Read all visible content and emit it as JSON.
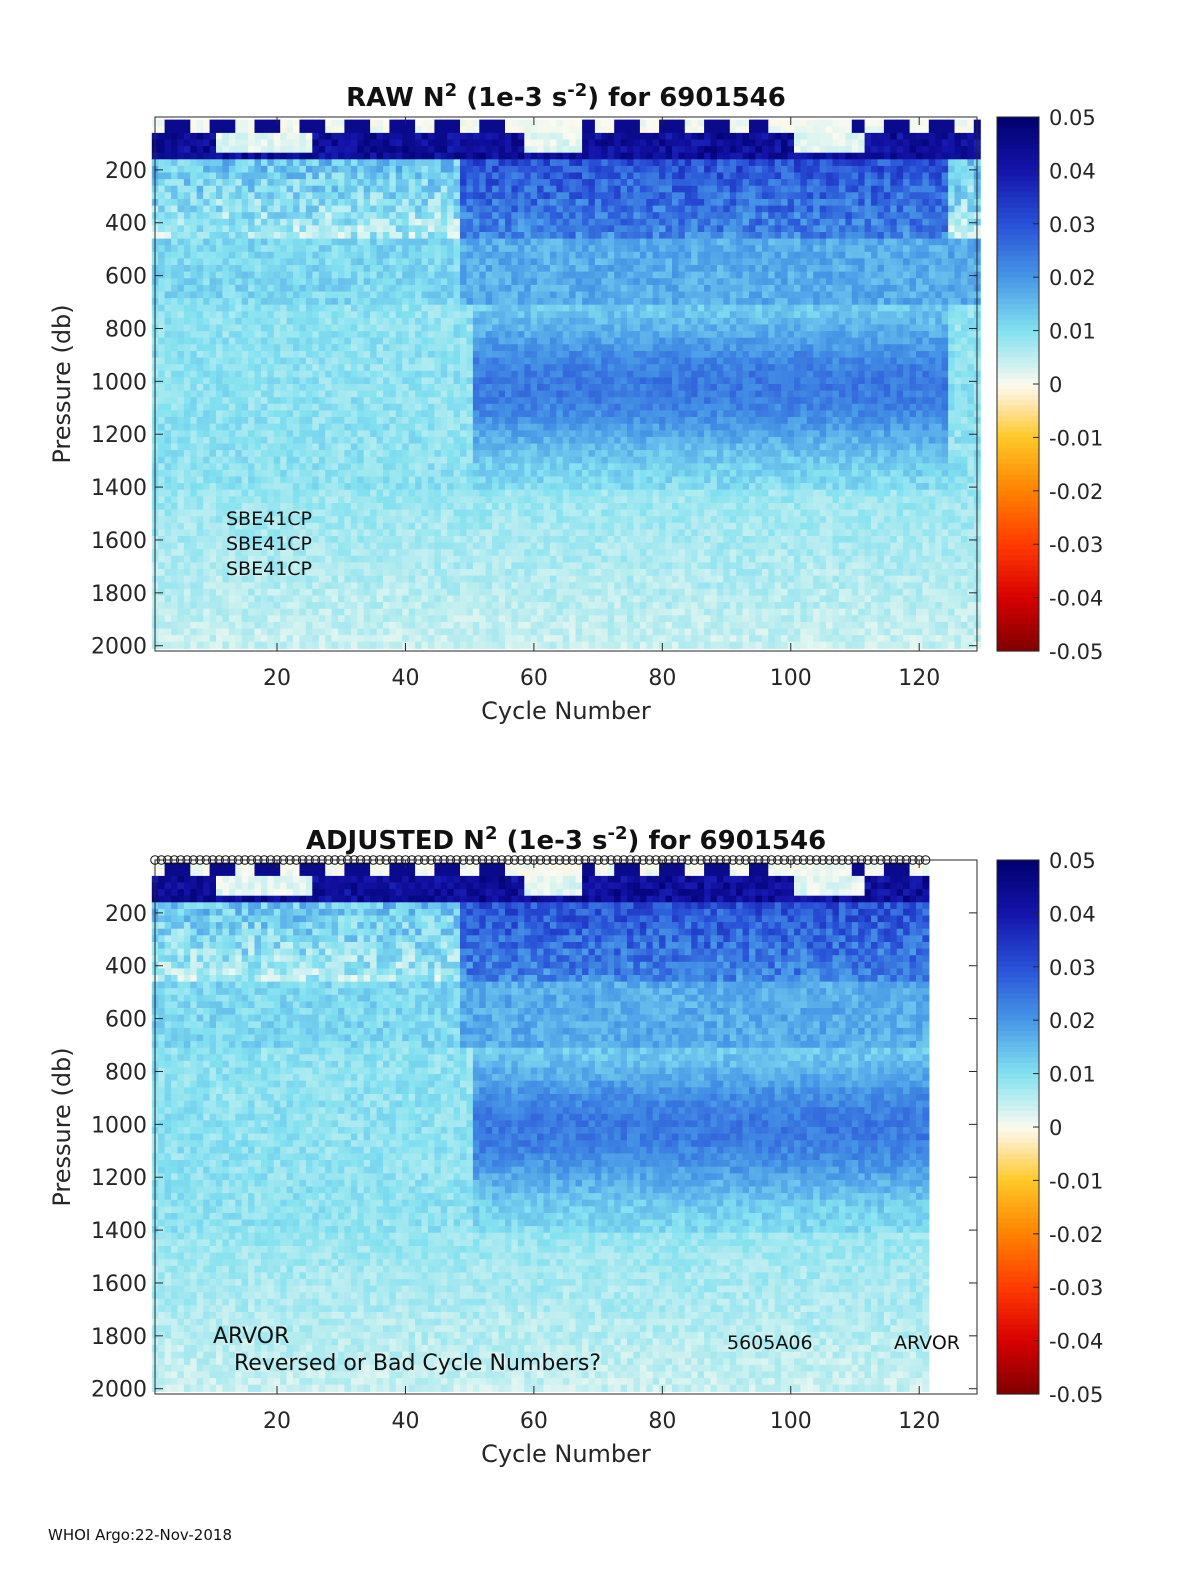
{
  "footer": "WHOI Argo:22-Nov-2018",
  "chart_data": [
    {
      "type": "heatmap",
      "title_main": "RAW N",
      "title_sup1": "2",
      "title_mid": " (1e-3 s",
      "title_sup2": "-2",
      "title_end": ") for 6901546",
      "xlabel": "Cycle Number",
      "ylabel": "Pressure (db)",
      "xlim": [
        1,
        129
      ],
      "ylim": [
        2020,
        0
      ],
      "xticks": [
        20,
        40,
        60,
        80,
        100,
        120
      ],
      "yticks": [
        200,
        400,
        600,
        800,
        1000,
        1200,
        1400,
        1600,
        1800,
        2000
      ],
      "annotations": [
        "SBE41CP",
        "SBE41CP",
        "SBE41CP"
      ],
      "colorbar": {
        "ticks": [
          0.05,
          0.04,
          0.03,
          0.02,
          0.01,
          0,
          -0.01,
          -0.02,
          -0.03,
          -0.04,
          -0.05
        ],
        "range": [
          -0.05,
          0.05
        ]
      },
      "last_cycle": 129,
      "circle_markers": false
    },
    {
      "type": "heatmap",
      "title_main": "ADJUSTED N",
      "title_sup1": "2",
      "title_mid": " (1e-3 s",
      "title_sup2": "-2",
      "title_end": ") for 6901546",
      "xlabel": "Cycle Number",
      "ylabel": "Pressure (db)",
      "xlim": [
        1,
        129
      ],
      "ylim": [
        2020,
        0
      ],
      "xticks": [
        20,
        40,
        60,
        80,
        100,
        120
      ],
      "yticks": [
        200,
        400,
        600,
        800,
        1000,
        1200,
        1400,
        1600,
        1800,
        2000
      ],
      "annotations": [
        "ARVOR",
        "Reversed or Bad Cycle Numbers?",
        "5605A06",
        "ARVOR"
      ],
      "colorbar": {
        "ticks": [
          0.05,
          0.04,
          0.03,
          0.02,
          0.01,
          0,
          -0.01,
          -0.02,
          -0.03,
          -0.04,
          -0.05
        ],
        "range": [
          -0.05,
          0.05
        ]
      },
      "last_cycle": 121,
      "circle_markers": true
    }
  ]
}
